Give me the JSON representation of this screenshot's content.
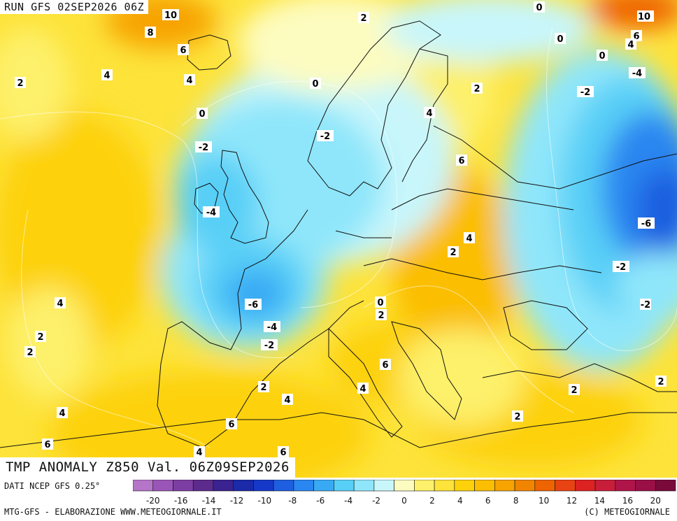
{
  "header": {
    "run_label": "RUN GFS 02SEP2026 06Z",
    "title": "TMP ANOMALY Z850 Val. 06Z09SEP2026"
  },
  "legend": {
    "source": "DATI NCEP GFS 0.25°",
    "ticks": [
      "-20",
      "-18",
      "-16",
      "-14",
      "-12",
      "-10",
      "-8",
      "-6",
      "-4",
      "-2",
      "0",
      "2",
      "4",
      "6",
      "8",
      "10",
      "12",
      "14",
      "16",
      "18",
      "20"
    ],
    "tick_labels": [
      "-20",
      "-16",
      "-14",
      "-12",
      "-10",
      "-8",
      "-6",
      "-4",
      "-2",
      "0",
      "2",
      "4",
      "6",
      "8",
      "10",
      "12",
      "14",
      "16",
      "20"
    ],
    "colors": [
      "#b575c9",
      "#9a55b8",
      "#7d3ea3",
      "#5c2b8c",
      "#3a2290",
      "#1a2aa8",
      "#1538c8",
      "#1e5ee0",
      "#2a86f0",
      "#38aaf4",
      "#58cff7",
      "#8fe6fa",
      "#c8f6fb",
      "#fdfcc0",
      "#fdf06a",
      "#fde33a",
      "#fdd20a",
      "#fbbe00",
      "#f7a300",
      "#f28500",
      "#ee6400",
      "#e84312",
      "#dd2222",
      "#c81e3a",
      "#b0154a",
      "#9a1046",
      "#7a0a3a"
    ]
  },
  "footer": {
    "left": "MTG-GFS - ELABORAZIONE WWW.METEOGIORNALE.IT",
    "right": "(C) METEOGIORNALE"
  },
  "contour_labels": [
    "10",
    "8",
    "6",
    "4",
    "2",
    "4",
    "2",
    "0",
    "0",
    "-2",
    "-2",
    "-4",
    "-6",
    "-4",
    "-2",
    "0",
    "2",
    "4",
    "2",
    "2",
    "4",
    "6",
    "6",
    "4",
    "2",
    "4",
    "6",
    "4",
    "6",
    "2",
    "6",
    "2",
    "4",
    "0",
    "2",
    "0",
    "-2",
    "-4",
    "-2",
    "-6",
    "-2",
    "0",
    "2",
    "2",
    "2",
    "10",
    "6",
    "4",
    "2"
  ]
}
